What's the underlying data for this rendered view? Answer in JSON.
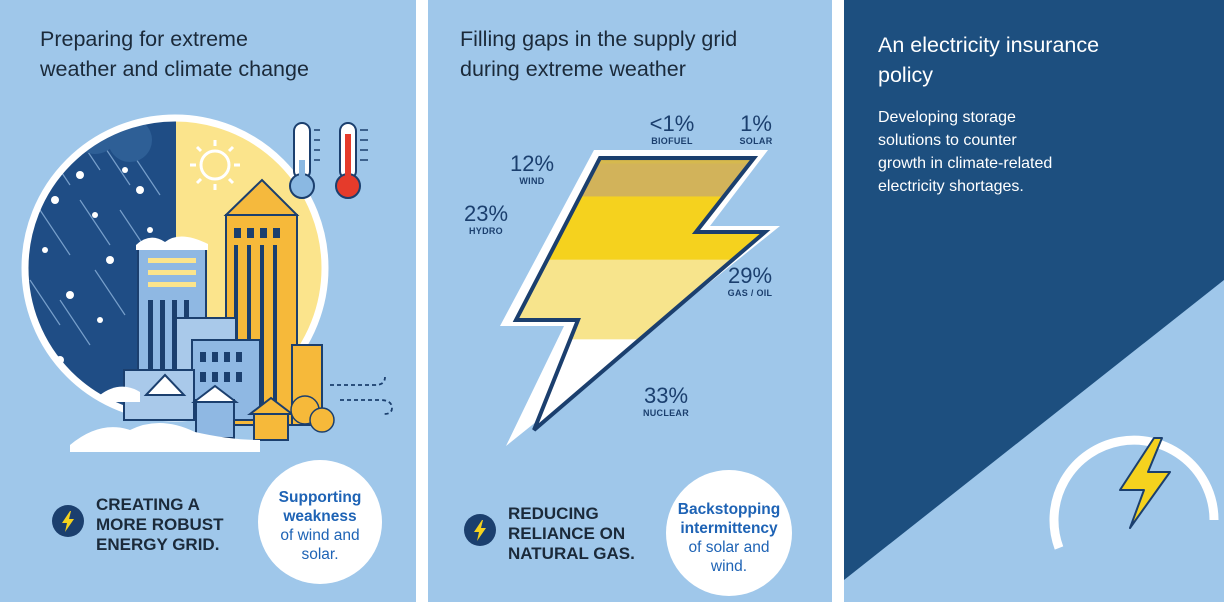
{
  "panel1": {
    "title": "Preparing for extreme\nweather and climate change",
    "callout": "CREATING A\nMORE ROBUST\nENERGY GRID.",
    "bubble_bold": "Supporting\nweakness",
    "bubble_text": "of wind and\nsolar."
  },
  "panel2": {
    "title": "Filling gaps in the supply grid\nduring extreme weather",
    "callout": "REDUCING\nRELIANCE ON\nNATURAL GAS.",
    "bubble_bold": "Backstopping\nintermittency",
    "bubble_text": "of solar and\nwind."
  },
  "panel3": {
    "title": "An electricity insurance\npolicy",
    "description": "Developing storage\nsolutions to counter\ngrowth in climate-related\nelectricity shortages."
  },
  "chart_data": {
    "type": "stacked-bar",
    "series": [
      {
        "name": "BIOFUEL",
        "label": "<1%",
        "value": 1,
        "color": "#c9ad4c"
      },
      {
        "name": "SOLAR",
        "label": "1%",
        "value": 1,
        "color": "#d6b94e"
      },
      {
        "name": "WIND",
        "label": "12%",
        "value": 12,
        "color": "#d2b35a"
      },
      {
        "name": "HYDRO",
        "label": "23%",
        "value": 23,
        "color": "#f5d21e"
      },
      {
        "name": "GAS / OIL",
        "label": "29%",
        "value": 29,
        "color": "#f7e48c"
      },
      {
        "name": "NUCLEAR",
        "label": "33%",
        "value": 33,
        "color": "#ffffff"
      }
    ]
  },
  "colors": {
    "panel_bg": "#9fc7ea",
    "dark_navy": "#1b3f6e",
    "panel3_bg": "#1d4f7f",
    "link_blue": "#1e63b5",
    "yellow": "#f5d21e"
  },
  "icons": [
    "bolt-icon",
    "thermometer-cold-icon",
    "thermometer-hot-icon",
    "sun-icon",
    "wind-icon"
  ]
}
